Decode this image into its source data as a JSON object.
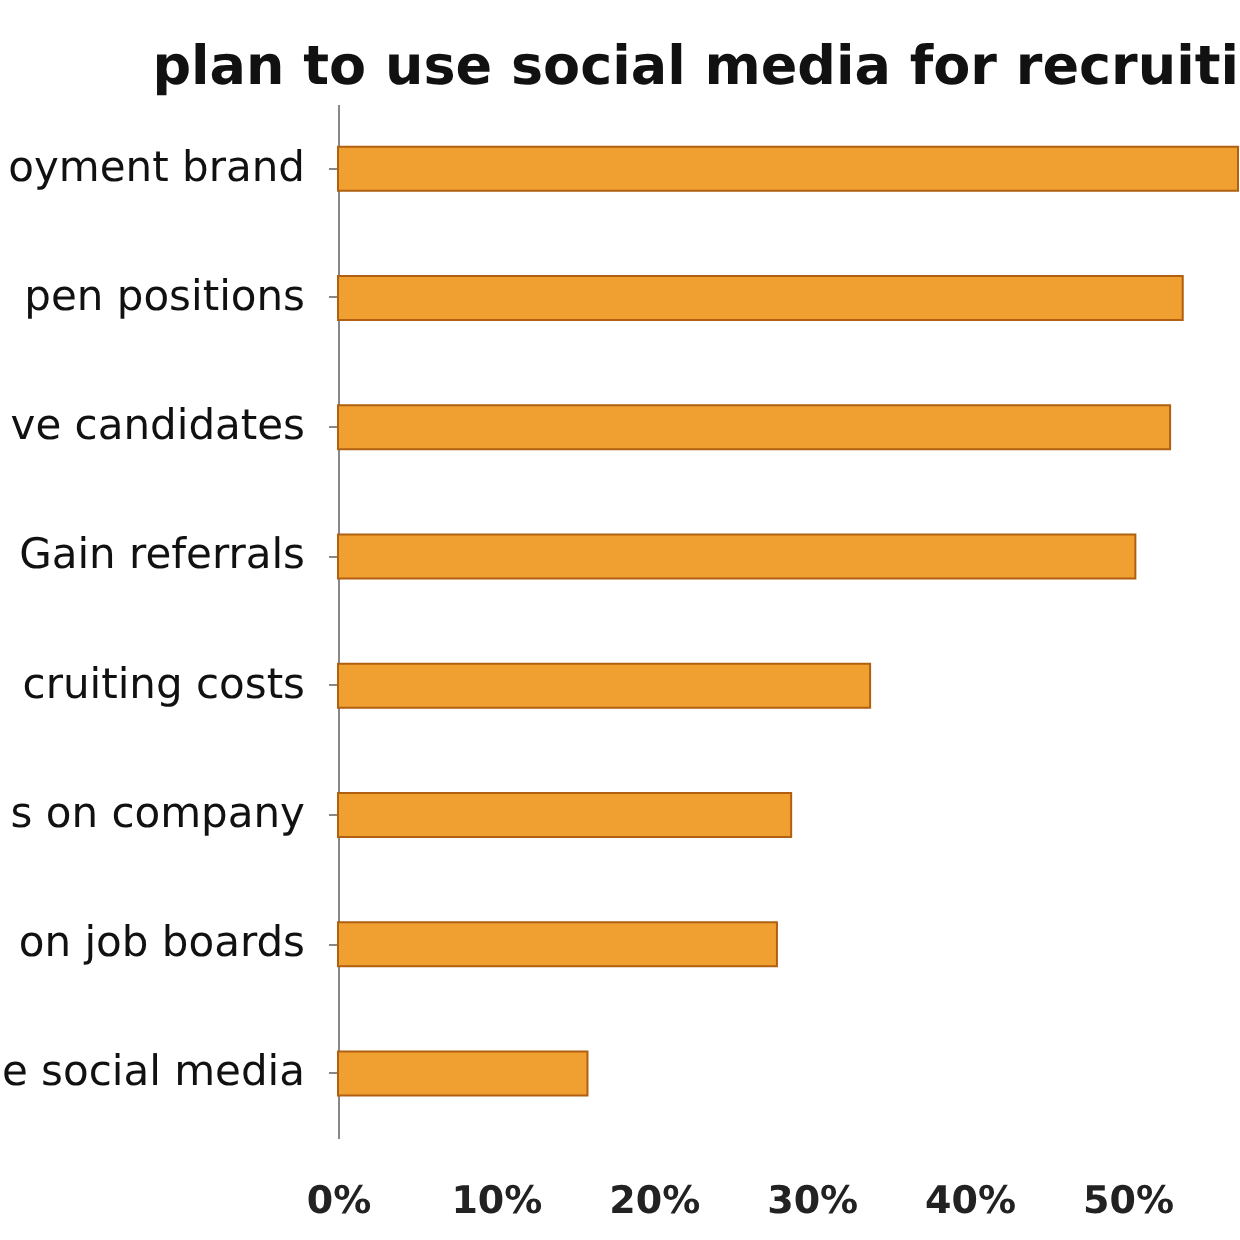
{
  "chart_data": {
    "type": "bar",
    "orientation": "horizontal",
    "title": "plan to use social media for recruiti",
    "categories": [
      "oyment brand",
      "pen positions",
      "ve candidates",
      "Gain referrals",
      "cruiting costs",
      "s on company",
      "on job boards",
      "e social media"
    ],
    "values": [
      57,
      53.5,
      52.7,
      50.5,
      33.7,
      28.7,
      27.8,
      15.8
    ],
    "color": "#f0a030",
    "xlim": [
      0,
      57
    ],
    "xticks": [
      {
        "value": 0,
        "label": "0%"
      },
      {
        "value": 10,
        "label": "10%"
      },
      {
        "value": 20,
        "label": "20%"
      },
      {
        "value": 30,
        "label": "30%"
      },
      {
        "value": 40,
        "label": "40%"
      },
      {
        "value": 50,
        "label": "50%"
      }
    ],
    "grid": false
  }
}
